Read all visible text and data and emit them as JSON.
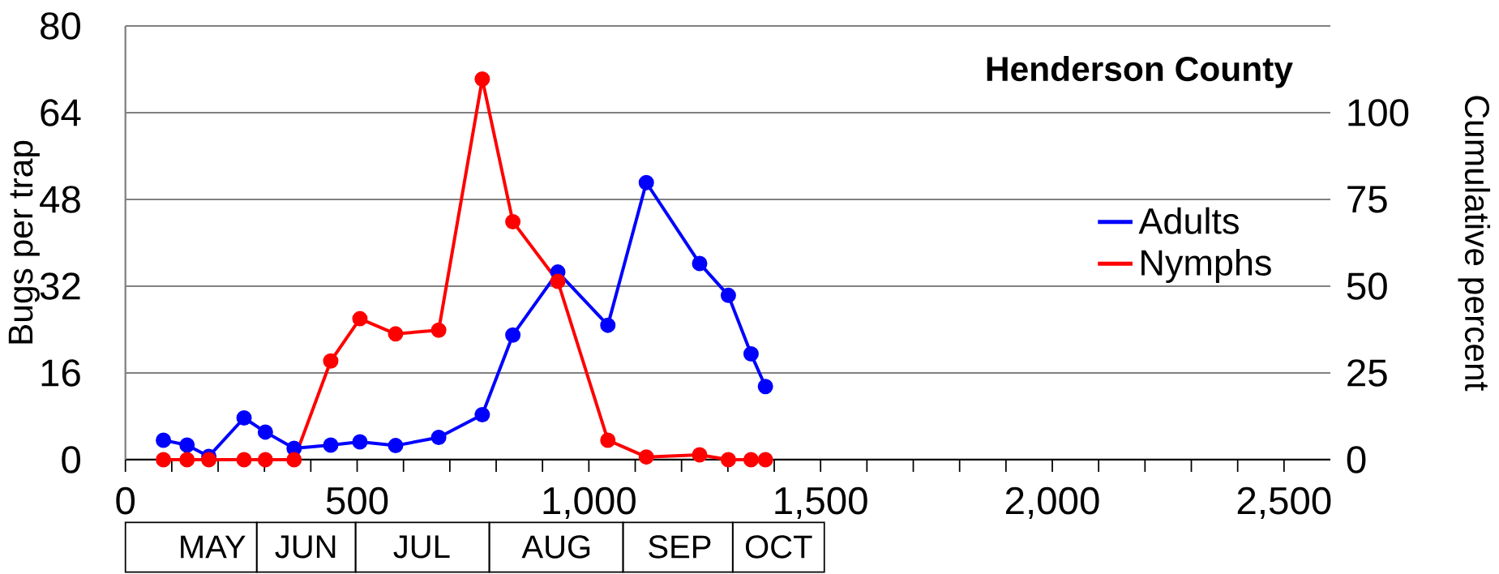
{
  "chart_data": {
    "type": "line",
    "title": "Henderson County",
    "ylabel": "Bugs per trap",
    "y2label": "Cumulative percent",
    "xlim": [
      0,
      2600
    ],
    "ylim": [
      0,
      80
    ],
    "y2lim": [
      0,
      125
    ],
    "xticks": [
      0,
      {
        "value": 100,
        "label": null
      },
      {
        "value": 200,
        "label": null
      },
      {
        "value": 300,
        "label": null
      },
      {
        "value": 400,
        "label": null
      },
      500,
      {
        "value": 600,
        "label": null
      },
      {
        "value": 700,
        "label": null
      },
      {
        "value": 800,
        "label": null
      },
      {
        "value": 900,
        "label": null
      },
      {
        "value": 1000,
        "label": "1,000"
      },
      {
        "value": 1100,
        "label": null
      },
      {
        "value": 1200,
        "label": null
      },
      {
        "value": 1300,
        "label": null
      },
      {
        "value": 1400,
        "label": null
      },
      {
        "value": 1500,
        "label": "1,500"
      },
      {
        "value": 1600,
        "label": null
      },
      {
        "value": 1700,
        "label": null
      },
      {
        "value": 1800,
        "label": null
      },
      {
        "value": 1900,
        "label": null
      },
      {
        "value": 2000,
        "label": "2,000"
      },
      {
        "value": 2100,
        "label": null
      },
      {
        "value": 2200,
        "label": null
      },
      {
        "value": 2300,
        "label": null
      },
      {
        "value": 2400,
        "label": null
      },
      {
        "value": 2500,
        "label": "2,500"
      }
    ],
    "yticks": [
      0,
      16,
      32,
      48,
      64,
      80
    ],
    "y2ticks": [
      0,
      25,
      50,
      75,
      100
    ],
    "grid": "y",
    "legend": "right",
    "marker": "circle",
    "series": [
      {
        "name": "Adults",
        "color": "#0000ff",
        "x": [
          82,
          133,
          180,
          256,
          302,
          364,
          443,
          506,
          583,
          676,
          770,
          836,
          933,
          1041,
          1124,
          1239,
          1301,
          1350,
          1381
        ],
        "values": [
          3.6,
          2.7,
          0.6,
          7.7,
          5.1,
          2.1,
          2.7,
          3.3,
          2.6,
          4.1,
          8.3,
          23.0,
          34.6,
          24.8,
          51.1,
          36.2,
          30.3,
          19.5,
          13.5
        ]
      },
      {
        "name": "Nymphs",
        "color": "#ff0000",
        "x": [
          82,
          133,
          180,
          256,
          302,
          364,
          443,
          506,
          583,
          676,
          770,
          836,
          933,
          1041,
          1124,
          1239,
          1301,
          1350,
          1381
        ],
        "values": [
          0,
          0,
          0,
          0,
          0,
          0,
          18.2,
          26.0,
          23.2,
          23.9,
          70.2,
          43.9,
          32.9,
          3.6,
          0.5,
          0.9,
          0,
          0,
          0
        ]
      }
    ],
    "annotations": [
      "MAY",
      "JUN",
      "JUL",
      "AUG",
      "SEP",
      "OCT"
    ]
  }
}
